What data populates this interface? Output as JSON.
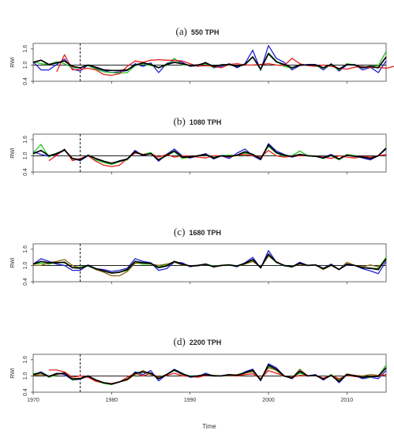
{
  "chart_data": {
    "type": "line",
    "xlabel": "Time",
    "xlim": [
      1970,
      2015
    ],
    "x_ticks": [
      "1970",
      "1980",
      "1990",
      "2000",
      "2010"
    ],
    "dashed_vline_x": 1976,
    "hline_y": 1.0,
    "panels": [
      {
        "letter": "(a)",
        "name": "550 TPH",
        "ylabel": "RWI",
        "ylim": [
          0.4,
          1.8
        ],
        "y_ticks": [
          "0.4",
          "1.0",
          "1.6"
        ],
        "series": [
          {
            "color": "#1f1fd1",
            "start": 1970,
            "values": [
              1.12,
              0.82,
              0.82,
              1.02,
              1.22,
              0.85,
              0.78,
              1.0,
              0.88,
              0.8,
              0.72,
              0.75,
              0.8,
              1.05,
              0.95,
              1.08,
              0.72,
              1.05,
              1.18,
              1.1,
              0.95,
              0.98,
              1.1,
              0.9,
              0.95,
              1.05,
              0.9,
              1.05,
              1.55,
              0.8,
              1.72,
              1.25,
              1.1,
              0.82,
              0.98,
              1.02,
              1.02,
              0.82,
              1.05,
              0.78,
              1.0,
              1.02,
              0.82,
              0.92,
              0.72,
              1.15
            ]
          },
          {
            "color": "#1ec81e",
            "start": 1970,
            "values": [
              1.12,
              1.05,
              1.02,
              1.12,
              1.05,
              0.9,
              0.9,
              0.98,
              0.85,
              0.75,
              0.72,
              0.7,
              0.72,
              0.98,
              1.05,
              0.98,
              0.92,
              0.98,
              1.25,
              1.0,
              1.0,
              1.0,
              1.05,
              0.92,
              1.02,
              1.0,
              0.95,
              1.0,
              1.3,
              0.82,
              1.45,
              1.15,
              0.95,
              0.88,
              1.02,
              1.0,
              0.98,
              0.88,
              1.0,
              0.82,
              1.05,
              1.0,
              0.92,
              0.95,
              0.98,
              1.5
            ]
          },
          {
            "color": "#e61c1c",
            "start": 1973,
            "values": [
              0.75,
              1.38,
              0.82,
              0.85,
              0.88,
              0.82,
              0.65,
              0.62,
              0.68,
              0.95,
              1.15,
              1.1,
              1.18,
              1.2,
              1.18,
              1.18,
              1.15,
              1.05,
              0.95,
              0.98,
              0.95,
              0.9,
              1.02,
              1.05,
              1.0,
              1.0,
              1.02,
              1.05,
              1.0,
              0.98,
              1.25,
              1.05,
              0.98,
              0.95,
              1.0,
              0.95,
              0.88,
              0.85,
              0.92,
              0.95,
              0.9,
              0.92,
              0.88,
              0.95,
              1.02,
              1.05
            ]
          },
          {
            "color": "#000000",
            "start": 1970,
            "values": [
              1.1,
              1.18,
              1.02,
              1.08,
              1.15,
              0.95,
              0.9,
              1.0,
              0.92,
              0.82,
              0.8,
              0.8,
              0.82,
              1.0,
              1.08,
              1.02,
              0.9,
              1.02,
              1.1,
              1.05,
              0.98,
              1.0,
              1.08,
              0.95,
              1.0,
              1.02,
              0.95,
              1.02,
              1.3,
              0.85,
              1.42,
              1.12,
              1.02,
              0.9,
              1.0,
              1.0,
              1.0,
              0.9,
              1.02,
              0.85,
              1.02,
              1.0,
              0.9,
              0.95,
              0.9,
              1.3
            ]
          }
        ]
      },
      {
        "letter": "(b)",
        "name": "1080 TPH",
        "ylabel": "RWI",
        "ylim": [
          0.4,
          1.8
        ],
        "y_ticks": [
          "0.4",
          "1.0",
          "1.6"
        ],
        "series": [
          {
            "color": "#1f1fd1",
            "start": 1970,
            "values": [
              1.15,
              1.05,
              0.98,
              1.05,
              1.2,
              0.9,
              0.82,
              1.0,
              0.88,
              0.78,
              0.7,
              0.82,
              0.88,
              1.2,
              1.0,
              1.1,
              0.8,
              1.05,
              1.25,
              1.0,
              0.92,
              1.0,
              1.08,
              0.88,
              1.0,
              0.9,
              1.1,
              1.25,
              1.0,
              0.85,
              1.45,
              1.18,
              1.05,
              0.95,
              1.02,
              1.0,
              0.98,
              0.95,
              1.05,
              0.88,
              1.02,
              1.0,
              0.92,
              0.85,
              1.0,
              1.25
            ]
          },
          {
            "color": "#1ec81e",
            "start": 1970,
            "values": [
              1.1,
              1.42,
              0.95,
              1.1,
              1.2,
              0.88,
              0.85,
              1.02,
              0.85,
              0.75,
              0.68,
              0.78,
              0.85,
              1.15,
              1.05,
              1.12,
              0.85,
              1.0,
              1.15,
              0.9,
              0.95,
              1.0,
              1.05,
              0.95,
              1.0,
              1.02,
              1.0,
              1.1,
              1.05,
              0.9,
              1.35,
              1.1,
              0.98,
              1.0,
              1.18,
              1.0,
              1.0,
              0.9,
              1.0,
              0.85,
              1.05,
              1.0,
              0.95,
              0.92,
              1.0,
              1.3
            ]
          },
          {
            "color": "#e61c1c",
            "start": 1972,
            "values": [
              0.82,
              1.02,
              1.25,
              0.82,
              0.9,
              1.0,
              0.8,
              0.65,
              0.6,
              0.65,
              0.9,
              1.1,
              1.05,
              1.08,
              0.95,
              1.05,
              0.95,
              1.0,
              0.98,
              0.95,
              0.92,
              1.0,
              1.0,
              0.95,
              1.02,
              1.05,
              1.0,
              0.95,
              1.2,
              1.0,
              0.95,
              0.98,
              1.0,
              1.0,
              0.98,
              0.95,
              0.9,
              1.0,
              0.95,
              0.92,
              0.98,
              0.95,
              1.0,
              1.05
            ]
          },
          {
            "color": "#000000",
            "start": 1970,
            "values": [
              1.08,
              1.2,
              1.0,
              1.08,
              1.22,
              0.9,
              0.85,
              1.02,
              0.9,
              0.8,
              0.72,
              0.8,
              0.88,
              1.15,
              1.02,
              1.08,
              0.85,
              1.02,
              1.18,
              0.95,
              0.95,
              1.0,
              1.05,
              0.92,
              1.0,
              0.98,
              1.02,
              1.15,
              1.05,
              0.88,
              1.4,
              1.12,
              1.02,
              0.98,
              1.05,
              1.0,
              0.98,
              0.92,
              1.02,
              0.88,
              1.02,
              0.98,
              0.95,
              0.9,
              1.0,
              1.28
            ]
          }
        ]
      },
      {
        "letter": "(c)",
        "name": "1680 TPH",
        "ylabel": "RWI",
        "ylim": [
          0.4,
          1.8
        ],
        "y_ticks": [
          "0.4",
          "1.0",
          "1.6"
        ],
        "series": [
          {
            "color": "#1f1fd1",
            "start": 1970,
            "values": [
              1.05,
              1.25,
              1.15,
              1.05,
              1.0,
              0.82,
              0.82,
              1.02,
              0.88,
              0.85,
              0.78,
              0.82,
              0.9,
              1.25,
              1.15,
              1.1,
              0.82,
              0.88,
              1.12,
              1.1,
              0.95,
              1.0,
              1.05,
              0.95,
              1.0,
              1.02,
              0.95,
              1.1,
              1.3,
              0.9,
              1.55,
              1.12,
              1.0,
              0.95,
              1.12,
              1.0,
              1.02,
              0.9,
              1.05,
              0.85,
              1.02,
              1.0,
              0.88,
              0.8,
              0.7,
              1.15
            ]
          },
          {
            "color": "#1ec81e",
            "start": 1970,
            "values": [
              1.05,
              1.08,
              1.05,
              1.12,
              1.1,
              0.92,
              0.95,
              0.98,
              0.85,
              0.78,
              0.72,
              0.75,
              0.82,
              1.1,
              1.05,
              1.05,
              0.95,
              1.02,
              1.15,
              1.05,
              0.98,
              1.0,
              1.05,
              0.98,
              1.0,
              1.0,
              0.98,
              1.05,
              1.2,
              0.92,
              1.35,
              1.12,
              0.98,
              0.98,
              1.05,
              1.0,
              1.0,
              0.9,
              1.0,
              0.85,
              1.05,
              1.0,
              0.92,
              0.88,
              0.9,
              1.3
            ]
          },
          {
            "color": "#8b6914",
            "start": 1970,
            "values": [
              1.0,
              1.0,
              1.1,
              1.15,
              1.22,
              1.0,
              0.9,
              1.0,
              0.85,
              0.75,
              0.62,
              0.62,
              0.78,
              1.08,
              1.1,
              1.05,
              1.0,
              1.05,
              1.12,
              1.02,
              0.98,
              0.98,
              1.05,
              0.95,
              1.0,
              1.02,
              0.98,
              1.05,
              1.15,
              0.95,
              1.35,
              1.15,
              1.0,
              0.95,
              1.05,
              1.0,
              1.02,
              0.85,
              1.0,
              0.85,
              1.12,
              1.0,
              0.95,
              1.02,
              0.95,
              1.2
            ]
          },
          {
            "color": "#000000",
            "start": 1970,
            "values": [
              1.05,
              1.15,
              1.1,
              1.1,
              1.12,
              0.92,
              0.9,
              1.0,
              0.88,
              0.8,
              0.72,
              0.75,
              0.85,
              1.15,
              1.1,
              1.08,
              0.92,
              0.98,
              1.15,
              1.05,
              0.98,
              1.0,
              1.05,
              0.95,
              1.0,
              1.02,
              0.98,
              1.08,
              1.22,
              0.92,
              1.42,
              1.12,
              1.0,
              0.95,
              1.08,
              1.0,
              1.02,
              0.88,
              1.02,
              0.85,
              1.05,
              1.0,
              0.92,
              0.9,
              0.85,
              1.25
            ]
          }
        ]
      },
      {
        "letter": "(d)",
        "name": "2200 TPH",
        "ylabel": "RWI",
        "ylim": [
          0.4,
          1.8
        ],
        "y_ticks": [
          "0.4",
          "1.0",
          "1.6"
        ],
        "series": [
          {
            "color": "#1f1fd1",
            "start": 1970,
            "values": [
              1.05,
              1.15,
              0.98,
              1.1,
              1.05,
              0.85,
              0.88,
              1.0,
              0.85,
              0.75,
              0.7,
              0.78,
              0.85,
              1.15,
              1.05,
              1.2,
              0.82,
              1.05,
              1.25,
              1.1,
              0.95,
              0.98,
              1.1,
              1.0,
              1.0,
              1.05,
              1.0,
              1.15,
              1.25,
              0.82,
              1.45,
              1.3,
              1.0,
              0.9,
              1.15,
              1.0,
              1.05,
              0.85,
              1.05,
              0.75,
              1.05,
              1.02,
              0.9,
              0.95,
              0.9,
              1.2
            ]
          },
          {
            "color": "#1ec81e",
            "start": 1970,
            "values": [
              1.08,
              1.12,
              0.95,
              1.05,
              1.12,
              0.85,
              0.92,
              1.0,
              0.82,
              0.72,
              0.68,
              0.78,
              0.88,
              1.05,
              1.15,
              1.05,
              0.95,
              1.05,
              1.2,
              1.05,
              1.0,
              1.0,
              1.05,
              1.0,
              1.0,
              1.02,
              1.0,
              1.1,
              1.18,
              0.88,
              1.35,
              1.2,
              0.98,
              0.95,
              1.1,
              1.0,
              1.02,
              0.9,
              1.05,
              0.85,
              1.05,
              1.0,
              0.95,
              0.95,
              1.0,
              1.4
            ]
          },
          {
            "color": "#e61c1c",
            "start": 1972,
            "values": [
              1.22,
              1.22,
              1.15,
              0.95,
              1.0,
              0.95,
              0.8,
              0.75,
              0.72,
              0.78,
              0.95,
              1.1,
              1.0,
              1.1,
              0.95,
              1.02,
              1.1,
              1.0,
              0.98,
              0.95,
              1.02,
              1.0,
              1.0,
              1.02,
              1.0,
              1.05,
              1.08,
              0.9,
              1.2,
              1.1,
              1.0,
              0.95,
              1.02,
              1.0,
              1.02,
              0.92,
              1.02,
              0.9,
              1.02,
              0.98,
              0.95,
              0.98,
              1.0,
              1.05
            ]
          },
          {
            "color": "#8b6914",
            "start": 1970,
            "values": [
              1.02,
              1.05,
              1.0,
              1.05,
              1.1,
              0.9,
              0.92,
              1.0,
              0.85,
              0.75,
              0.7,
              0.78,
              0.85,
              1.05,
              1.2,
              1.05,
              0.95,
              1.05,
              1.22,
              1.05,
              0.98,
              1.0,
              1.05,
              1.02,
              1.0,
              1.02,
              1.05,
              1.12,
              1.15,
              0.9,
              1.3,
              1.22,
              1.0,
              0.92,
              1.25,
              1.0,
              1.02,
              0.88,
              1.02,
              0.82,
              1.08,
              1.02,
              1.0,
              1.05,
              1.02,
              1.3
            ]
          },
          {
            "color": "#000000",
            "start": 1970,
            "values": [
              1.05,
              1.12,
              0.98,
              1.08,
              1.1,
              0.88,
              0.9,
              1.0,
              0.85,
              0.75,
              0.7,
              0.78,
              0.88,
              1.1,
              1.15,
              1.1,
              0.9,
              1.05,
              1.22,
              1.08,
              0.98,
              1.0,
              1.05,
              1.0,
              1.0,
              1.05,
              1.02,
              1.12,
              1.22,
              0.85,
              1.4,
              1.25,
              1.0,
              0.92,
              1.18,
              1.0,
              1.02,
              0.88,
              1.02,
              0.8,
              1.05,
              1.0,
              0.95,
              0.98,
              0.98,
              1.3
            ]
          }
        ]
      }
    ]
  }
}
